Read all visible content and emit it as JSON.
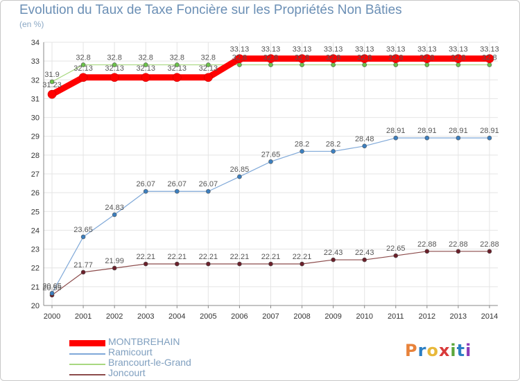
{
  "title": "Evolution du Taux de Taxe Foncière sur les Propriétés Non Bâties",
  "unit": "(en %)",
  "logo": {
    "text": "Proxiti",
    "letters": [
      "P",
      "r",
      "o",
      "x",
      "i",
      "t",
      "i"
    ],
    "colors": [
      "#e8823a",
      "#2b7fc4",
      "#e8b83a",
      "#d93a3a",
      "#5aa63a",
      "#2b7fc4",
      "#8a3ab8"
    ]
  },
  "chart_data": {
    "type": "line",
    "x": [
      "2000",
      "2001",
      "2002",
      "2003",
      "2004",
      "2005",
      "2006",
      "2007",
      "2008",
      "2009",
      "2010",
      "2011",
      "2012",
      "2013",
      "2014"
    ],
    "yticks": [
      "20",
      "21",
      "22",
      "23",
      "24",
      "25",
      "26",
      "27",
      "28",
      "29",
      "30",
      "31",
      "32",
      "33",
      "34"
    ],
    "ylim": [
      20,
      34
    ],
    "series": [
      {
        "name": "MONTBREHAIN",
        "color": "#ff0000",
        "marker": "#ff0000",
        "values": [
          31.23,
          32.13,
          32.13,
          32.13,
          32.13,
          32.13,
          33.13,
          33.13,
          33.13,
          33.13,
          33.13,
          33.13,
          33.13,
          33.13,
          33.13
        ],
        "labels": [
          "31.23",
          "32.13",
          "32.13",
          "32.13",
          "32.13",
          "32.13",
          "33.13",
          "33.13",
          "33.13",
          "33.13",
          "33.13",
          "33.13",
          "33.13",
          "33.13",
          "33.13"
        ]
      },
      {
        "name": "Ramicourt",
        "color": "#7fa8d8",
        "marker": "#3c7fbf",
        "values": [
          20.65,
          23.65,
          24.83,
          26.07,
          26.07,
          26.07,
          26.85,
          27.65,
          28.2,
          28.2,
          28.48,
          28.91,
          28.91,
          28.91,
          28.91
        ],
        "labels": [
          "20.65",
          "23.65",
          "24.83",
          "26.07",
          "26.07",
          "26.07",
          "26.85",
          "27.65",
          "28.2",
          "28.2",
          "28.48",
          "28.91",
          "28.91",
          "28.91",
          "28.91"
        ]
      },
      {
        "name": "Brancourt-le-Grand",
        "color": "#a8d880",
        "marker": "#6cc24a",
        "values": [
          31.9,
          32.8,
          32.8,
          32.8,
          32.8,
          32.8,
          32.8,
          32.8,
          32.8,
          32.8,
          32.8,
          32.8,
          32.8,
          32.8,
          32.8
        ],
        "labels": [
          "31.9",
          "32.8",
          "32.8",
          "32.8",
          "32.8",
          "32.8",
          "32.8",
          "32.8",
          "32.8",
          "32.8",
          "32.8",
          "32.8",
          "32.8",
          "32.8",
          "32.8"
        ]
      },
      {
        "name": "Joncourt",
        "color": "#8b4a4a",
        "marker": "#6b1f2a",
        "values": [
          20.55,
          21.77,
          21.99,
          22.21,
          22.21,
          22.21,
          22.21,
          22.21,
          22.21,
          22.43,
          22.43,
          22.65,
          22.88,
          22.88,
          22.88
        ],
        "labels": [
          "20.55",
          "21.77",
          "21.99",
          "22.21",
          "22.21",
          "22.21",
          "22.21",
          "22.21",
          "22.21",
          "22.43",
          "22.43",
          "22.65",
          "22.88",
          "22.88",
          "22.88"
        ]
      }
    ]
  }
}
